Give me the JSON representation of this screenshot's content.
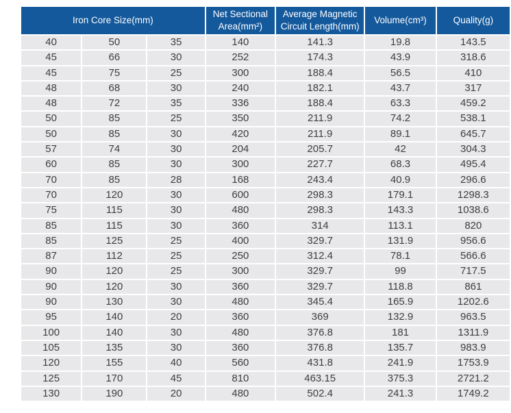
{
  "colors": {
    "header_bg": "#14599c",
    "header_text": "#ffffff",
    "row_bg": "#e8e8ea",
    "row_text": "#3e3e40",
    "grid_separator": "#ffffff",
    "page_bg": "#ffffff"
  },
  "chart_data": {
    "type": "table",
    "title": "",
    "headers": [
      {
        "label": "Iron Core Size(mm)",
        "colspan": 3
      },
      {
        "label": "Net Sectional Area(mm²)",
        "colspan": 1
      },
      {
        "label": "Average Magnetic Circuit Length(mm)",
        "colspan": 1
      },
      {
        "label": "Volume(cm³)",
        "colspan": 1
      },
      {
        "label": "Quality(g)",
        "colspan": 1
      }
    ],
    "rows": [
      [
        40,
        50,
        35,
        140,
        141.3,
        19.8,
        143.5
      ],
      [
        45,
        66,
        30,
        252,
        174.3,
        43.9,
        318.6
      ],
      [
        45,
        75,
        25,
        300,
        188.4,
        56.5,
        410
      ],
      [
        48,
        68,
        30,
        240,
        182.1,
        43.7,
        317
      ],
      [
        48,
        72,
        35,
        336,
        188.4,
        63.3,
        459.2
      ],
      [
        50,
        85,
        25,
        350,
        211.9,
        74.2,
        538.1
      ],
      [
        50,
        85,
        30,
        420,
        211.9,
        89.1,
        645.7
      ],
      [
        57,
        74,
        30,
        204,
        205.7,
        42,
        304.3
      ],
      [
        60,
        85,
        30,
        300,
        227.7,
        68.3,
        495.4
      ],
      [
        70,
        85,
        28,
        168,
        243.4,
        40.9,
        296.6
      ],
      [
        70,
        120,
        30,
        600,
        298.3,
        179.1,
        1298.3
      ],
      [
        75,
        115,
        30,
        480,
        298.3,
        143.3,
        1038.6
      ],
      [
        85,
        115,
        30,
        360,
        314,
        113.1,
        820
      ],
      [
        85,
        125,
        25,
        400,
        329.7,
        131.9,
        956.6
      ],
      [
        87,
        112,
        25,
        250,
        312.4,
        78.1,
        566.6
      ],
      [
        90,
        120,
        25,
        300,
        329.7,
        99,
        717.5
      ],
      [
        90,
        120,
        30,
        360,
        329.7,
        118.8,
        861
      ],
      [
        90,
        130,
        30,
        480,
        345.4,
        165.9,
        1202.6
      ],
      [
        95,
        140,
        20,
        360,
        369,
        132.9,
        963.5
      ],
      [
        100,
        140,
        30,
        480,
        376.8,
        181,
        1311.9
      ],
      [
        105,
        135,
        30,
        360,
        376.8,
        135.7,
        983.9
      ],
      [
        120,
        155,
        40,
        560,
        431.8,
        241.9,
        1753.9
      ],
      [
        125,
        170,
        45,
        810,
        463.15,
        375.3,
        2721.2
      ],
      [
        130,
        190,
        20,
        480,
        502.4,
        241.3,
        1749.2
      ]
    ]
  }
}
